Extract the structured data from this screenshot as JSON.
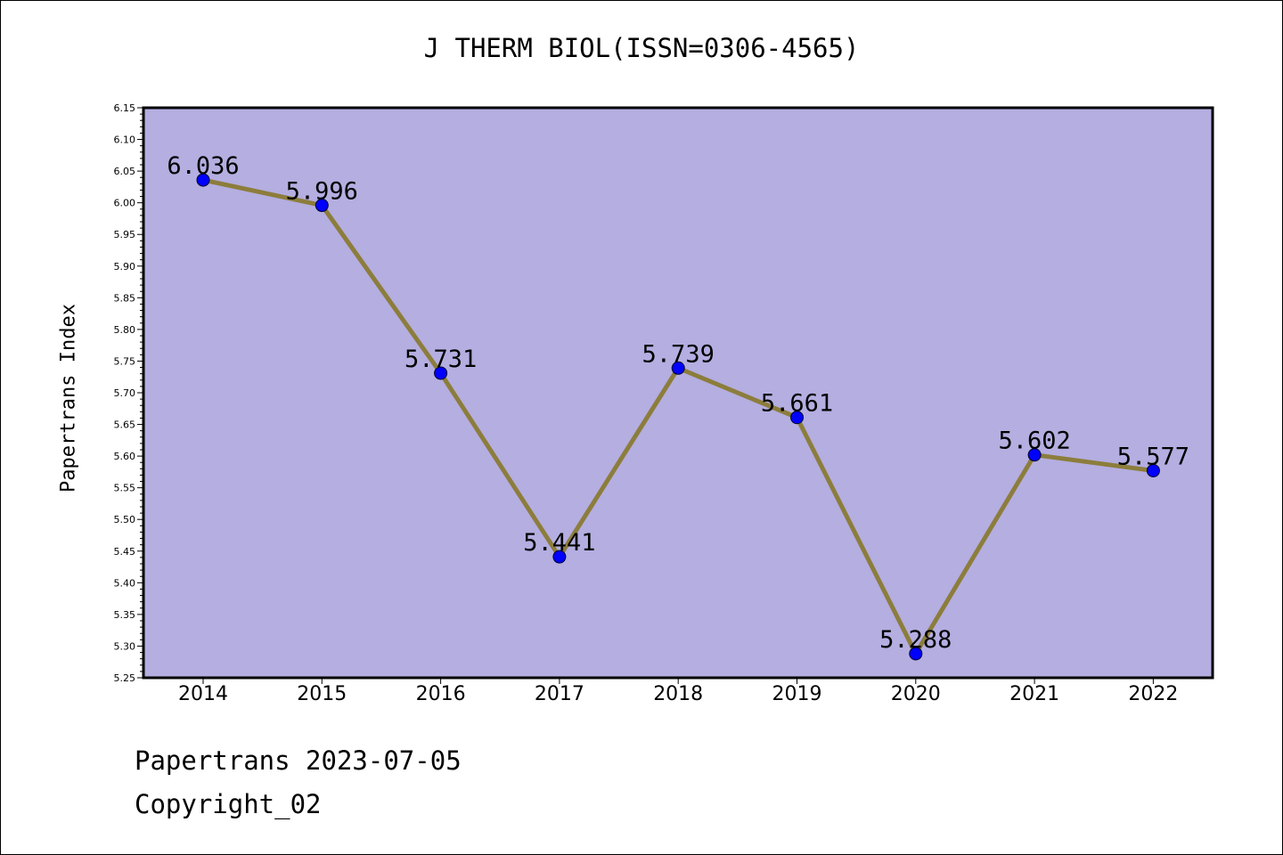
{
  "title": "J THERM BIOL(ISSN=0306-4565)",
  "footer": {
    "date_line": "Papertrans 2023-07-05",
    "copyright_line": "Copyright_02"
  },
  "chart_data": {
    "type": "line",
    "title": "J THERM BIOL(ISSN=0306-4565)",
    "xlabel": "",
    "ylabel": "Papertrans Index",
    "categories": [
      "2014",
      "2015",
      "2016",
      "2017",
      "2018",
      "2019",
      "2020",
      "2021",
      "2022"
    ],
    "series": [
      {
        "values": [
          6.036,
          5.996,
          5.731,
          5.441,
          5.739,
          5.661,
          5.288,
          5.602,
          5.577
        ],
        "data_labels": [
          "6.036",
          "5.996",
          "5.731",
          "5.441",
          "5.739",
          "5.661",
          "5.288",
          "5.602",
          "5.577"
        ]
      }
    ],
    "ylim": [
      5.25,
      6.15
    ],
    "y_ticks": [
      "5.25",
      "5.30",
      "5.35",
      "5.40",
      "5.45",
      "5.50",
      "5.55",
      "5.60",
      "5.65",
      "5.70",
      "5.75",
      "5.80",
      "5.85",
      "5.90",
      "5.95",
      "6.00",
      "6.05",
      "6.10",
      "6.15"
    ],
    "grid": false,
    "legend": "none",
    "colors": {
      "plot_background": "#b4aee1",
      "line": "#8c7d3c",
      "marker": "#0000ff"
    }
  }
}
